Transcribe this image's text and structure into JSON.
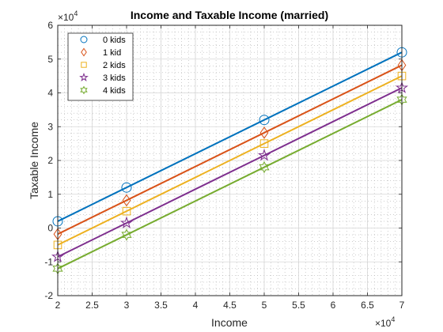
{
  "chart_data": {
    "type": "line",
    "title": "Income and Taxable Income (married)",
    "xlabel": "Income",
    "ylabel": "Taxable Income",
    "x_multiplier": "×10",
    "x_exponent": "4",
    "y_multiplier": "×10",
    "y_exponent": "4",
    "xlim": [
      20000,
      70000
    ],
    "ylim": [
      -20000,
      60000
    ],
    "x_ticks": [
      20000,
      25000,
      30000,
      35000,
      40000,
      45000,
      50000,
      55000,
      60000,
      65000,
      70000
    ],
    "x_tick_labels": [
      "2",
      "2.5",
      "3",
      "3.5",
      "4",
      "4.5",
      "5",
      "5.5",
      "6",
      "6.5",
      "7"
    ],
    "y_ticks": [
      -20000,
      -10000,
      0,
      10000,
      20000,
      30000,
      40000,
      50000,
      60000
    ],
    "y_tick_labels": [
      "-2",
      "-1",
      "0",
      "1",
      "2",
      "3",
      "4",
      "5",
      "6"
    ],
    "grid": true,
    "minor_grid": true,
    "legend_position": "top-left",
    "x": [
      20000,
      30000,
      50000,
      70000
    ],
    "series": [
      {
        "name": "0 kids",
        "marker": "circle",
        "color": "#0072BD",
        "values": [
          2000,
          12000,
          32000,
          52000
        ]
      },
      {
        "name": "1 kid",
        "marker": "diamond",
        "color": "#D95319",
        "values": [
          -1800,
          8200,
          28200,
          48200
        ]
      },
      {
        "name": "2 kids",
        "marker": "square",
        "color": "#EDB120",
        "values": [
          -5000,
          5000,
          25000,
          45000
        ]
      },
      {
        "name": "3 kids",
        "marker": "star",
        "color": "#7E2F8E",
        "values": [
          -8500,
          1500,
          21500,
          41500
        ]
      },
      {
        "name": "4 kids",
        "marker": "hexagram",
        "color": "#77AC30",
        "values": [
          -12000,
          -2000,
          18000,
          38000
        ]
      }
    ]
  }
}
